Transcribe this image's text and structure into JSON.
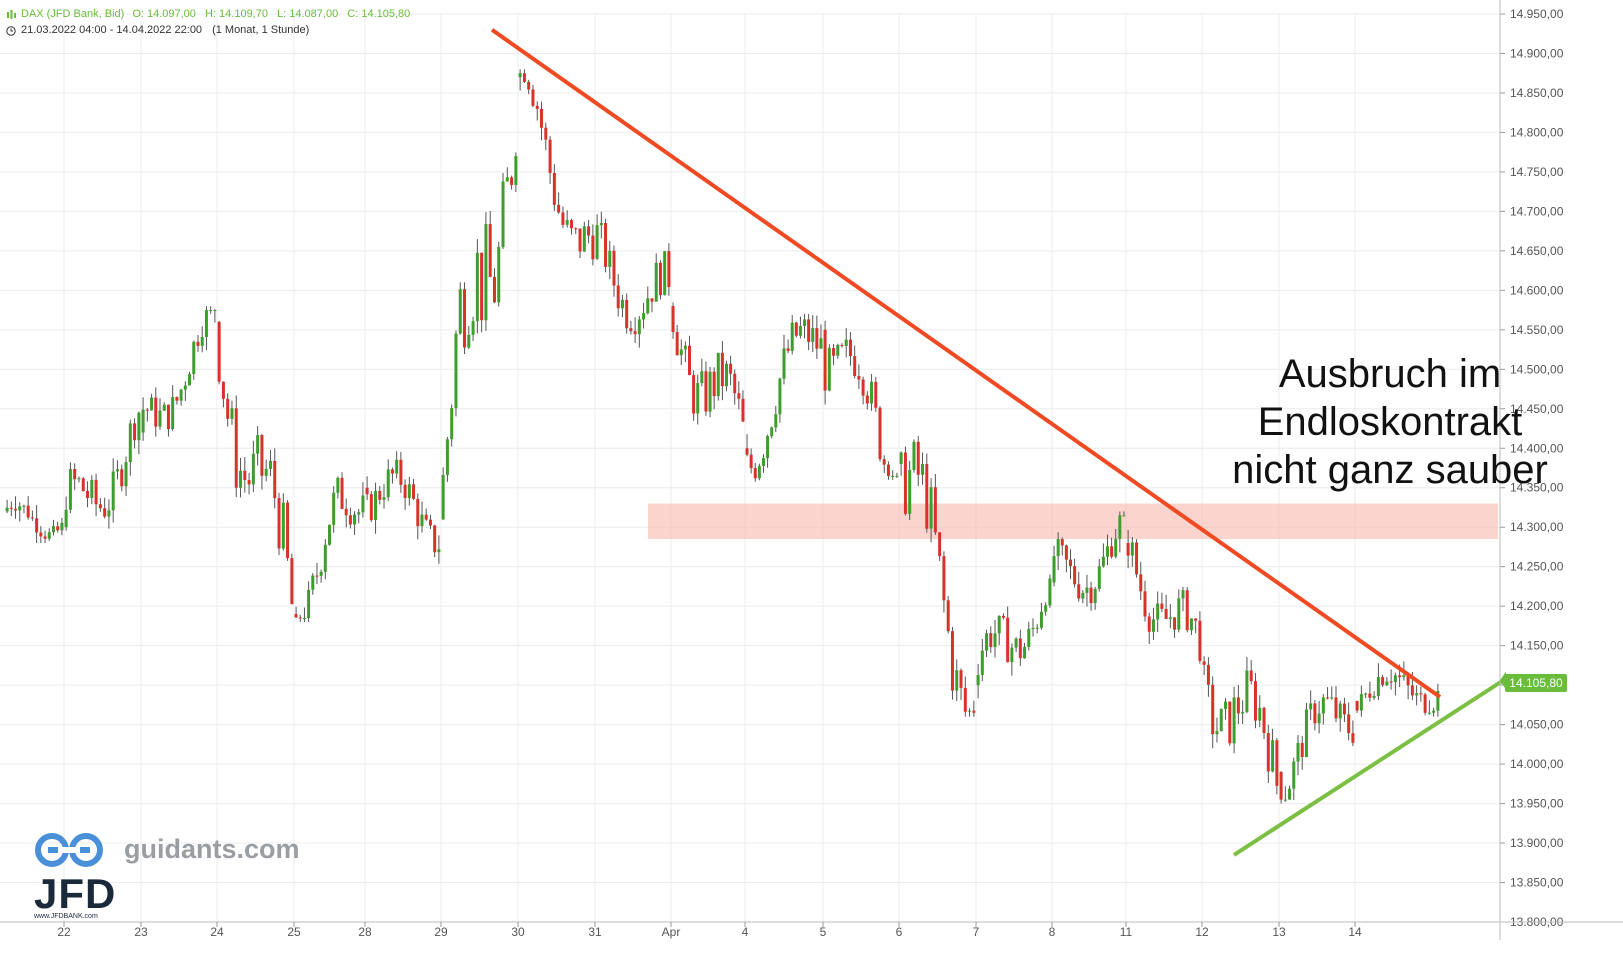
{
  "header": {
    "symbol": "DAX (JFD Bank, Bid)",
    "ohlc": {
      "open": "O: 14.097,00",
      "high": "H: 14.109,70",
      "low": "L: 14.087,00",
      "close": "C: 14.105,80"
    },
    "range": "21.03.2022 04:00 - 14.04.2022 22:00",
    "period": "(1 Monat, 1 Stunde)"
  },
  "annotation": {
    "line1": "Ausbruch im",
    "line2": "Endloskontrakt",
    "line3": "nicht ganz sauber"
  },
  "branding": {
    "domain": "guidants.com",
    "logo_text": "JFD",
    "logo_sub": "www.JFDBANK.com"
  },
  "current_price_label": "14.105,80",
  "colors": {
    "up": "#3e9e2b",
    "down": "#d9322b",
    "resistance_line": "#f04a23",
    "support_line": "#7cc043",
    "zone": "#f8b0a6",
    "grid": "#ececec",
    "price_tag": "#6abd3a"
  },
  "chart_data": {
    "type": "candlestick",
    "y_axis": {
      "ticks": [
        "14.950,00",
        "14.900,00",
        "14.850,00",
        "14.800,00",
        "14.750,00",
        "14.700,00",
        "14.650,00",
        "14.600,00",
        "14.550,00",
        "14.500,00",
        "14.450,00",
        "14.400,00",
        "14.350,00",
        "14.300,00",
        "14.250,00",
        "14.200,00",
        "14.150,00",
        "14.100,00",
        "14.050,00",
        "14.000,00",
        "13.950,00",
        "13.900,00",
        "13.850,00",
        "13.800,00"
      ],
      "min": 13800,
      "max": 14950,
      "position": "right"
    },
    "x_axis": {
      "ticks": [
        "22",
        "23",
        "24",
        "25",
        "28",
        "29",
        "30",
        "31",
        "Apr",
        "4",
        "5",
        "6",
        "7",
        "8",
        "11",
        "12",
        "13",
        "14"
      ]
    },
    "grid": true,
    "daily_path": [
      {
        "label": "21",
        "o": 14320,
        "h": 14360,
        "l": 14280,
        "c": 14300
      },
      {
        "label": "22",
        "o": 14300,
        "h": 14450,
        "l": 14230,
        "c": 14420
      },
      {
        "label": "23",
        "o": 14420,
        "h": 14580,
        "l": 14400,
        "c": 14560
      },
      {
        "label": "24",
        "o": 14560,
        "h": 14570,
        "l": 14180,
        "c": 14190
      },
      {
        "label": "25",
        "o": 14190,
        "h": 14430,
        "l": 14180,
        "c": 14350
      },
      {
        "label": "28",
        "o": 14350,
        "h": 14430,
        "l": 14250,
        "c": 14310
      },
      {
        "label": "29",
        "o": 14310,
        "h": 14920,
        "l": 14300,
        "c": 14870
      },
      {
        "label": "30",
        "o": 14870,
        "h": 14880,
        "l": 14620,
        "c": 14640
      },
      {
        "label": "31",
        "o": 14640,
        "h": 14740,
        "l": 14520,
        "c": 14580
      },
      {
        "label": "Apr",
        "o": 14580,
        "h": 14600,
        "l": 14320,
        "c": 14400
      },
      {
        "label": "4",
        "o": 14400,
        "h": 14570,
        "l": 14340,
        "c": 14550
      },
      {
        "label": "5",
        "o": 14550,
        "h": 14610,
        "l": 14360,
        "c": 14380
      },
      {
        "label": "6",
        "o": 14380,
        "h": 14440,
        "l": 14060,
        "c": 14100
      },
      {
        "label": "7",
        "o": 14100,
        "h": 14240,
        "l": 14030,
        "c": 14230
      },
      {
        "label": "8",
        "o": 14230,
        "h": 14320,
        "l": 14140,
        "c": 14280
      },
      {
        "label": "11",
        "o": 14280,
        "h": 14300,
        "l": 14090,
        "c": 14130
      },
      {
        "label": "12",
        "o": 14130,
        "h": 14180,
        "l": 13890,
        "c": 13990
      },
      {
        "label": "13",
        "o": 13990,
        "h": 14150,
        "l": 13950,
        "c": 14080
      },
      {
        "label": "14",
        "o": 14080,
        "h": 14200,
        "l": 14060,
        "c": 14105.8
      }
    ],
    "overlays": {
      "resistance_trendline": {
        "from": {
          "x": "29",
          "y": 14930
        },
        "to": {
          "x": "14",
          "y": 14085
        }
      },
      "support_trendline": {
        "from": {
          "x": "12",
          "y": 13885
        },
        "to": {
          "x": "14",
          "y": 14105.8
        }
      },
      "zone": {
        "y_top": 14330,
        "y_bottom": 14285,
        "from_x": "31",
        "to_x": "14"
      }
    }
  }
}
